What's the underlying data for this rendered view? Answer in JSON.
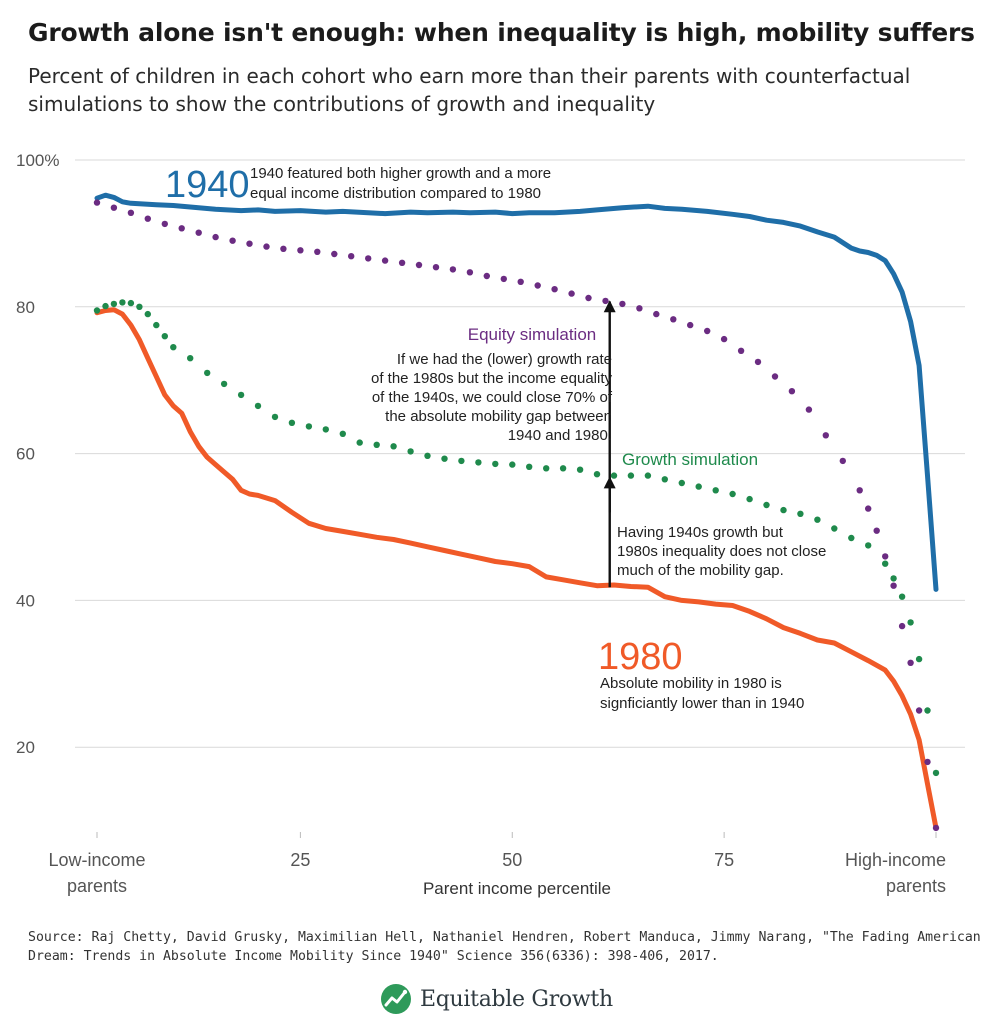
{
  "title": "Growth alone isn't enough: when inequality is high, mobility suffers",
  "subtitle": "Percent of children in each cohort who earn more than their parents with counterfactual simulations to show the contributions of growth and inequality",
  "source": "Source: Raj Chetty, David Grusky, Maximilian Hell, Nathaniel Hendren, Robert Manduca, Jimmy Narang, \"The Fading American Dream: Trends in Absolute Income Mobility Since 1940\" Science 356(6336): 398-406, 2017.",
  "logo": {
    "text": "Equitable Growth",
    "icon": "growth-chart-icon"
  },
  "colors": {
    "c1940": "#1f6ea8",
    "c1980": "#f05a28",
    "equity": "#6b2c82",
    "growth": "#1f8a4c",
    "grid": "#d9d9d9",
    "axis_text": "#555555"
  },
  "annotations": {
    "label_1940": "1940",
    "note_1940": [
      "1940 featured both higher growth and a more",
      "equal income distribution compared to 1980"
    ],
    "label_1980": "1980",
    "note_1980": [
      "Absolute mobility in 1980 is",
      "signficiantly lower than in 1940"
    ],
    "equity_title": "Equity simulation",
    "equity_note": [
      "If we had the (lower) growth rate",
      "of the 1980s but the income equality",
      "of the 1940s, we could close 70% of",
      "the absolute mobility gap between",
      "1940 and 1980."
    ],
    "growth_title": "Growth simulation",
    "growth_note": [
      "Having 1940s growth but",
      "1980s inequality does not close",
      "much of the mobility gap."
    ]
  },
  "chart_data": {
    "type": "line",
    "title": "Growth alone isn't enough: when inequality is high, mobility suffers",
    "xlabel": "Parent income percentile",
    "ylabel": "",
    "xlim": [
      0,
      100
    ],
    "ylim": [
      0,
      100
    ],
    "y_ticks": [
      20,
      40,
      60,
      80,
      100
    ],
    "y_tick_labels": [
      "20",
      "40",
      "60",
      "80",
      "100%"
    ],
    "x_ticks": [
      {
        "value": 1,
        "label": [
          "Low-income",
          "parents"
        ],
        "align": "middle"
      },
      {
        "value": 25,
        "label": [
          "25"
        ],
        "align": "middle"
      },
      {
        "value": 50,
        "label": [
          "50"
        ],
        "align": "middle"
      },
      {
        "value": 75,
        "label": [
          "75"
        ],
        "align": "middle"
      },
      {
        "value": 100,
        "label": [
          "High-income",
          "parents"
        ],
        "align": "end"
      }
    ],
    "grid": true,
    "series": [
      {
        "name": "1940",
        "style": "line",
        "x": [
          1,
          2,
          3,
          4,
          5,
          8,
          10,
          12,
          15,
          18,
          20,
          22,
          25,
          28,
          30,
          33,
          35,
          38,
          40,
          43,
          45,
          48,
          50,
          52,
          55,
          58,
          60,
          63,
          66,
          68,
          70,
          73,
          76,
          78,
          80,
          82,
          84,
          86,
          88,
          90,
          91,
          92,
          93,
          94,
          95,
          96,
          97,
          98,
          99,
          100
        ],
        "values": [
          94.8,
          95.2,
          94.9,
          94.3,
          94.1,
          93.9,
          93.8,
          93.6,
          93.3,
          93.1,
          93.2,
          93.0,
          93.1,
          92.9,
          93.0,
          92.8,
          92.7,
          92.9,
          92.8,
          92.9,
          92.8,
          92.9,
          92.7,
          92.8,
          92.8,
          93.0,
          93.2,
          93.5,
          93.7,
          93.4,
          93.3,
          93.0,
          92.6,
          92.3,
          91.8,
          91.5,
          91.0,
          90.2,
          89.5,
          88.0,
          87.6,
          87.4,
          87.0,
          86.3,
          84.5,
          82.0,
          78.0,
          72.0,
          57.0,
          41.5
        ]
      },
      {
        "name": "1980",
        "style": "line",
        "x": [
          1,
          2,
          3,
          4,
          5,
          6,
          7,
          8,
          9,
          10,
          11,
          12,
          13,
          14,
          15,
          16,
          17,
          18,
          19,
          20,
          22,
          24,
          26,
          28,
          30,
          32,
          34,
          36,
          38,
          40,
          42,
          44,
          46,
          48,
          50,
          52,
          54,
          56,
          58,
          60,
          62,
          64,
          66,
          68,
          70,
          72,
          74,
          76,
          78,
          80,
          82,
          84,
          86,
          88,
          90,
          92,
          94,
          95,
          96,
          97,
          98,
          99,
          100
        ],
        "values": [
          79.2,
          79.5,
          79.6,
          79.0,
          77.5,
          75.5,
          73.0,
          70.5,
          68.0,
          66.5,
          65.5,
          63.0,
          61.0,
          59.5,
          58.5,
          57.5,
          56.5,
          55.0,
          54.5,
          54.3,
          53.6,
          52.0,
          50.5,
          49.8,
          49.4,
          49.0,
          48.6,
          48.3,
          47.8,
          47.3,
          46.8,
          46.3,
          45.8,
          45.3,
          45.0,
          44.6,
          43.2,
          42.8,
          42.4,
          42.0,
          42.1,
          41.9,
          41.8,
          40.5,
          40.0,
          39.8,
          39.5,
          39.3,
          38.5,
          37.5,
          36.3,
          35.5,
          34.6,
          34.2,
          33.0,
          31.8,
          30.5,
          29.0,
          27.0,
          24.5,
          21.0,
          15.0,
          9.0
        ]
      },
      {
        "name": "Equity simulation",
        "style": "dots",
        "x": [
          1,
          3,
          5,
          7,
          9,
          11,
          13,
          15,
          17,
          19,
          21,
          23,
          25,
          27,
          29,
          31,
          33,
          35,
          37,
          39,
          41,
          43,
          45,
          47,
          49,
          51,
          53,
          55,
          57,
          59,
          61,
          63,
          65,
          67,
          69,
          71,
          73,
          75,
          77,
          79,
          81,
          83,
          85,
          87,
          89,
          91,
          92,
          93,
          94,
          95,
          96,
          97,
          98,
          99,
          100
        ],
        "values": [
          94.2,
          93.5,
          92.8,
          92.0,
          91.3,
          90.7,
          90.1,
          89.5,
          89.0,
          88.6,
          88.2,
          87.9,
          87.7,
          87.5,
          87.2,
          86.9,
          86.6,
          86.3,
          86.0,
          85.7,
          85.4,
          85.1,
          84.7,
          84.2,
          83.8,
          83.4,
          82.9,
          82.4,
          81.8,
          81.2,
          80.8,
          80.4,
          79.8,
          79.0,
          78.3,
          77.5,
          76.7,
          75.6,
          74.0,
          72.5,
          70.5,
          68.5,
          66.0,
          62.5,
          59.0,
          55.0,
          52.5,
          49.5,
          46.0,
          42.0,
          36.5,
          31.5,
          25.0,
          18.0,
          9.0
        ]
      },
      {
        "name": "Growth simulation",
        "style": "dots",
        "x": [
          1,
          2,
          3,
          4,
          5,
          6,
          7,
          8,
          9,
          10,
          12,
          14,
          16,
          18,
          20,
          22,
          24,
          26,
          28,
          30,
          32,
          34,
          36,
          38,
          40,
          42,
          44,
          46,
          48,
          50,
          52,
          54,
          56,
          58,
          60,
          62,
          64,
          66,
          68,
          70,
          72,
          74,
          76,
          78,
          80,
          82,
          84,
          86,
          88,
          90,
          92,
          94,
          95,
          96,
          97,
          98,
          99,
          100
        ],
        "values": [
          79.5,
          80.1,
          80.4,
          80.6,
          80.5,
          80.0,
          79.0,
          77.5,
          76.0,
          74.5,
          73.0,
          71.0,
          69.5,
          68.0,
          66.5,
          65.0,
          64.2,
          63.7,
          63.3,
          62.7,
          61.5,
          61.2,
          61.0,
          60.3,
          59.7,
          59.3,
          59.0,
          58.8,
          58.6,
          58.5,
          58.2,
          58.0,
          58.0,
          57.8,
          57.2,
          57.0,
          57.0,
          57.0,
          56.5,
          56.0,
          55.5,
          55.0,
          54.5,
          53.8,
          53.0,
          52.3,
          51.8,
          51.0,
          49.8,
          48.5,
          47.5,
          45.0,
          43.0,
          40.5,
          37.0,
          32.0,
          25.0,
          16.5
        ]
      }
    ],
    "arrows": [
      {
        "x": 61.5,
        "from": 41.8,
        "to": 81.0
      },
      {
        "x": 61.5,
        "from": 52.0,
        "to": 57.0
      }
    ]
  }
}
